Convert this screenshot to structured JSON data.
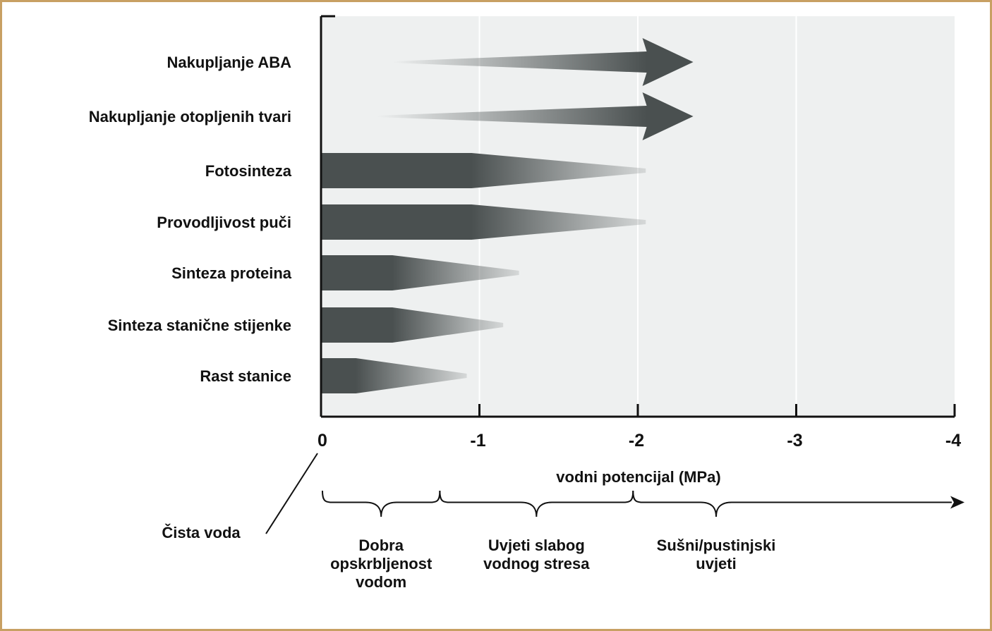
{
  "colors": {
    "frame": "#c8a063",
    "plot_bg": "#eef0f0",
    "bar": "#4a5050",
    "ink": "#111111"
  },
  "chart_data": {
    "type": "bar",
    "xlabel": "vodni potencijal (MPa)",
    "x_ticks": [
      "0",
      "-1",
      "-2",
      "-3",
      "-4"
    ],
    "xlim": [
      0,
      -4
    ],
    "processes": [
      {
        "label": "Nakupljanje ABA",
        "kind": "increase",
        "start": -0.45,
        "end": -2.35
      },
      {
        "label": "Nakupljanje otopljenih tvari",
        "kind": "increase",
        "start": -0.35,
        "end": -2.35
      },
      {
        "label": "Fotosinteza",
        "kind": "decrease",
        "full_until": -0.95,
        "end": -2.05
      },
      {
        "label": "Provodljivost puči",
        "kind": "decrease",
        "full_until": -0.95,
        "end": -2.05
      },
      {
        "label": "Sinteza proteina",
        "kind": "decrease",
        "full_until": -0.45,
        "end": -1.25
      },
      {
        "label": "Sinteza stanične stijenke",
        "kind": "decrease",
        "full_until": -0.45,
        "end": -1.15
      },
      {
        "label": "Rast stanice",
        "kind": "decrease",
        "full_until": -0.22,
        "end": -0.92
      }
    ],
    "zero_annotation": "Čista voda",
    "zones": [
      {
        "lines": [
          "Dobra",
          "opskrbljenost",
          "vodom"
        ],
        "from": 0,
        "to": -0.75
      },
      {
        "lines": [
          "Uvjeti slabog",
          "vodnog stresa"
        ],
        "from": -0.75,
        "to": -1.97
      },
      {
        "lines": [
          "Sušni/pustinjski",
          "uvjeti"
        ],
        "from": -1.97,
        "to": -4
      }
    ]
  }
}
